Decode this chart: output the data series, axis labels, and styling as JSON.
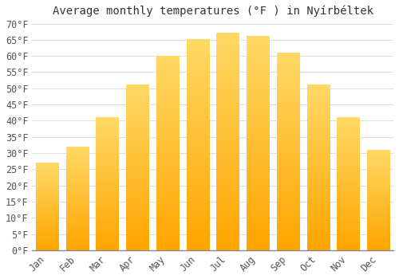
{
  "title": "Average monthly temperatures (°F ) in Nyírbéltek",
  "months": [
    "Jan",
    "Feb",
    "Mar",
    "Apr",
    "May",
    "Jun",
    "Jul",
    "Aug",
    "Sep",
    "Oct",
    "Nov",
    "Dec"
  ],
  "values": [
    27,
    32,
    41,
    51,
    60,
    65,
    67,
    66,
    61,
    51,
    41,
    31
  ],
  "bar_color_top": "#FFA500",
  "bar_color_bottom": "#FFD966",
  "background_color": "#FFFFFF",
  "grid_color": "#DDDDDD",
  "ylim": [
    0,
    70
  ],
  "ytick_step": 5,
  "title_fontsize": 10,
  "tick_fontsize": 8.5,
  "font_family": "monospace"
}
